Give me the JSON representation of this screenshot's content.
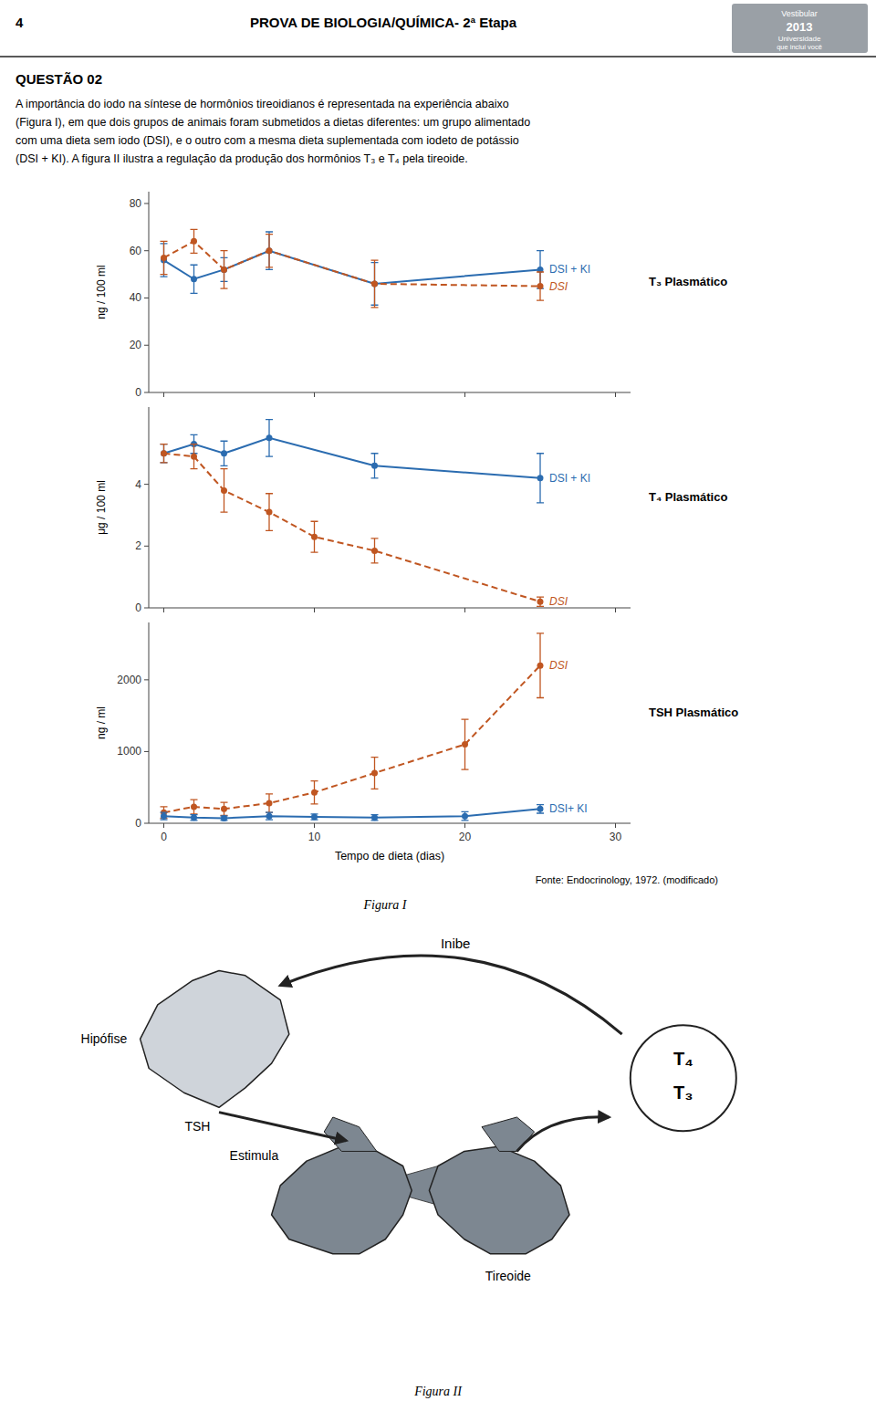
{
  "page": {
    "page_number": "4",
    "header": "PROVA DE BIOLOGIA/QUÍMICA- 2ª Etapa",
    "badge": [
      "Vestibular",
      "2013",
      "Universidade",
      "que inclui você"
    ],
    "question": "QUESTÃO 02",
    "intro": [
      "A importância do iodo na síntese de hormônios tireoidianos é representada na experiência abaixo",
      "(Figura I), em que dois grupos de animais foram submetidos a dietas diferentes: um grupo alimentado",
      "com uma dieta sem iodo (DSI), e o outro com a mesma dieta suplementada com iodeto de potássio",
      "(DSI + KI). A figura II ilustra a regulação da produção dos hormônios  T₃ e  T₄ pela tireoide."
    ],
    "source": "Fonte: Endocrinology, 1972. (modificado)",
    "figure_labels": [
      "Figura I",
      "Figura II"
    ],
    "diagram": {
      "hipofise": "Hipófise",
      "tireoide": "Tireoide",
      "hormones": [
        "T₄",
        "T₃"
      ],
      "inibe": "Inibe",
      "tsh": "TSH",
      "estimula": "Estimula"
    }
  },
  "chart_data": [
    {
      "type": "line",
      "title": "T₃ Plasmático",
      "ylabel": "ng / 100 ml",
      "xlim": [
        -1,
        31
      ],
      "xticks": [
        0,
        10,
        20,
        30
      ],
      "ylim": [
        0,
        85
      ],
      "yticks": [
        0,
        20,
        40,
        60,
        80
      ],
      "tick_labels": "y",
      "series": [
        {
          "name": "DSI + KI",
          "color": "#2b6cb0",
          "line_style": "solid",
          "marker": "circle",
          "x": [
            0,
            2,
            4,
            7,
            14,
            25
          ],
          "values": [
            56,
            48,
            52,
            60,
            46,
            52
          ],
          "errors": [
            7,
            6,
            5,
            8,
            9,
            8
          ]
        },
        {
          "name": "DSI",
          "color": "#c05621",
          "line_style": "dashed",
          "marker": "circle",
          "x": [
            0,
            2,
            4,
            7,
            14,
            25
          ],
          "values": [
            57,
            64,
            52,
            60,
            46,
            45
          ],
          "errors": [
            7,
            5,
            8,
            7,
            10,
            6
          ]
        }
      ]
    },
    {
      "type": "line",
      "title": "T₄ Plasmático",
      "ylabel": "μg / 100 ml",
      "xlim": [
        -1,
        31
      ],
      "xticks": [
        0,
        10,
        20,
        30
      ],
      "ylim": [
        0,
        6.5
      ],
      "yticks": [
        0,
        2,
        4
      ],
      "tick_labels": "y",
      "series": [
        {
          "name": "DSI + KI",
          "color": "#2b6cb0",
          "line_style": "solid",
          "marker": "circle",
          "x": [
            0,
            2,
            4,
            7,
            14,
            25
          ],
          "values": [
            5.0,
            5.3,
            5.0,
            5.5,
            4.6,
            4.2
          ],
          "errors": [
            0.3,
            0.3,
            0.4,
            0.6,
            0.4,
            0.8
          ]
        },
        {
          "name": "DSI",
          "color": "#c05621",
          "line_style": "dashed",
          "marker": "circle",
          "x": [
            0,
            2,
            4,
            7,
            10,
            14,
            25
          ],
          "values": [
            5.0,
            4.9,
            3.8,
            3.1,
            2.3,
            1.85,
            0.2
          ],
          "errors": [
            0.3,
            0.4,
            0.7,
            0.6,
            0.5,
            0.4,
            0.15
          ]
        }
      ]
    },
    {
      "type": "line",
      "title": "TSH Plasmático",
      "ylabel": "ng / ml",
      "xlabel": "Tempo de dieta (dias)",
      "xlim": [
        -1,
        31
      ],
      "xticks": [
        0,
        10,
        20,
        30
      ],
      "ylim": [
        0,
        2800
      ],
      "yticks": [
        0,
        1000,
        2000
      ],
      "series": [
        {
          "name": "DSI",
          "color": "#c05621",
          "line_style": "dashed",
          "marker": "circle",
          "x": [
            0,
            2,
            4,
            7,
            10,
            14,
            20,
            25
          ],
          "values": [
            150,
            230,
            200,
            280,
            430,
            700,
            1100,
            2200
          ],
          "errors": [
            80,
            100,
            90,
            130,
            160,
            220,
            350,
            450
          ]
        },
        {
          "name": "DSI+ KI",
          "color": "#2b6cb0",
          "line_style": "solid",
          "marker": "circle",
          "x": [
            0,
            2,
            4,
            7,
            10,
            14,
            20,
            25
          ],
          "values": [
            100,
            80,
            70,
            100,
            90,
            80,
            100,
            200
          ],
          "errors": [
            50,
            40,
            30,
            50,
            40,
            40,
            60,
            60
          ]
        }
      ]
    }
  ]
}
